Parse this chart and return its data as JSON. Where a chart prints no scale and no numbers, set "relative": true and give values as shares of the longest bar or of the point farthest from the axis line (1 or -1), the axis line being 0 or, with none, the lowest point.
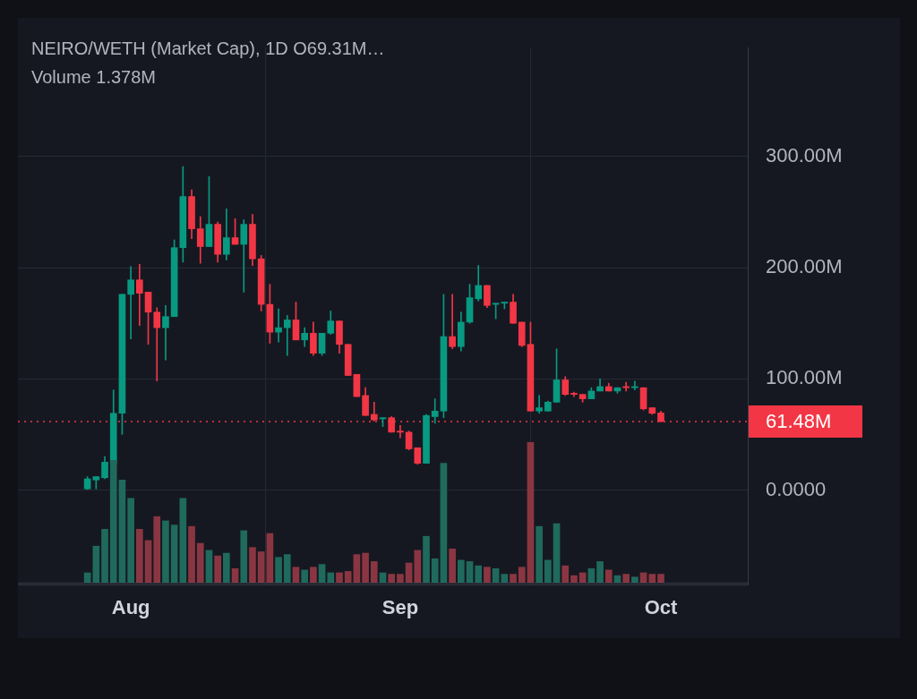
{
  "chart_data": [
    {
      "type": "candlestick",
      "title": "NEIRO/WETH (Market Cap), 1D O69.31M…",
      "x": [
        "--07-27",
        "--07-28",
        "--07-29",
        "--07-30",
        "--07-31",
        "--08-01",
        "--08-02",
        "--08-03",
        "--08-04",
        "--08-05",
        "--08-06",
        "--08-07",
        "--08-08",
        "--08-09",
        "--08-10",
        "--08-11",
        "--08-12",
        "--08-13",
        "--08-14",
        "--08-15",
        "--08-16",
        "--08-17",
        "--08-18",
        "--08-19",
        "--08-20",
        "--08-21",
        "--08-22",
        "--08-23",
        "--08-24",
        "--08-25",
        "--08-26",
        "--08-27",
        "--08-28",
        "--08-29",
        "--08-30",
        "--08-31",
        "--09-01",
        "--09-02",
        "--09-03",
        "--09-04",
        "--09-05",
        "--09-06",
        "--09-07",
        "--09-08",
        "--09-09",
        "--09-10",
        "--09-11",
        "--09-12",
        "--09-13",
        "--09-14",
        "--09-15",
        "--09-16",
        "--09-17",
        "--09-18",
        "--09-19",
        "--09-20",
        "--09-21",
        "--09-22",
        "--09-23",
        "--09-24",
        "--09-25",
        "--09-26",
        "--09-27",
        "--09-28",
        "--09-29",
        "--09-30",
        "--10-01"
      ],
      "ohlc": [
        [
          1,
          12,
          0.5,
          10
        ],
        [
          9,
          12,
          1,
          12
        ],
        [
          11,
          30,
          10,
          25
        ],
        [
          24,
          90,
          24,
          69
        ],
        [
          69,
          176,
          50,
          176
        ],
        [
          176,
          201,
          136,
          189
        ],
        [
          189,
          203,
          148,
          177
        ],
        [
          178,
          178,
          131,
          160
        ],
        [
          160,
          164,
          98,
          146
        ],
        [
          146,
          166,
          117,
          156
        ],
        [
          156,
          225,
          156,
          218
        ],
        [
          218,
          291,
          205,
          264
        ],
        [
          264,
          270,
          226,
          235
        ],
        [
          235,
          246,
          204,
          219
        ],
        [
          219,
          282,
          219,
          239
        ],
        [
          239,
          241,
          205,
          212
        ],
        [
          212,
          253,
          207,
          227
        ],
        [
          227,
          244,
          221,
          221
        ],
        [
          221,
          243,
          178,
          239
        ],
        [
          239,
          248,
          202,
          208
        ],
        [
          208,
          211,
          161,
          167
        ],
        [
          167,
          185,
          132,
          142
        ],
        [
          142,
          163,
          133,
          146
        ],
        [
          146,
          157,
          121,
          153
        ],
        [
          153,
          169,
          135,
          135
        ],
        [
          135,
          146,
          129,
          141
        ],
        [
          141,
          151,
          121,
          123
        ],
        [
          123,
          141,
          121,
          141
        ],
        [
          141,
          161,
          140,
          152
        ],
        [
          152,
          152,
          123,
          131
        ],
        [
          131,
          131,
          103,
          103
        ],
        [
          104,
          104,
          84,
          84
        ],
        [
          85,
          92,
          67,
          67
        ],
        [
          68,
          79,
          62,
          63
        ],
        [
          64,
          65,
          57,
          65
        ],
        [
          65,
          66,
          52,
          52
        ],
        [
          53,
          58,
          47,
          52
        ],
        [
          52,
          53,
          36,
          37
        ],
        [
          38,
          38,
          23,
          24
        ],
        [
          24,
          68,
          24,
          67
        ],
        [
          66,
          82,
          60,
          71
        ],
        [
          71,
          176,
          65,
          138
        ],
        [
          138,
          176,
          127,
          129
        ],
        [
          129,
          160,
          125,
          151
        ],
        [
          151,
          185,
          150,
          173
        ],
        [
          172,
          202,
          170,
          184
        ],
        [
          184,
          184,
          164,
          166
        ],
        [
          167,
          168,
          154,
          168
        ],
        [
          168,
          169,
          163,
          169
        ],
        [
          169,
          176,
          150,
          150
        ],
        [
          151,
          151,
          129,
          130
        ],
        [
          131,
          151,
          71,
          71
        ],
        [
          71,
          85,
          69,
          74
        ],
        [
          71,
          80,
          71,
          79
        ],
        [
          79,
          127,
          79,
          99
        ],
        [
          99,
          102,
          85,
          86
        ],
        [
          87,
          88,
          84,
          86
        ],
        [
          86,
          86,
          79,
          82
        ],
        [
          82,
          92,
          82,
          89
        ],
        [
          89,
          100,
          89,
          93
        ],
        [
          93,
          96,
          89,
          89
        ],
        [
          89,
          92,
          87,
          92
        ],
        [
          93,
          97,
          89,
          92
        ],
        [
          92,
          98,
          90,
          93
        ],
        [
          92,
          92,
          72,
          73
        ],
        [
          74,
          74,
          68,
          69
        ],
        [
          69.31,
          71,
          61.48,
          61.48
        ]
      ],
      "colors": [
        "#089981",
        "#089981",
        "#089981",
        "#089981",
        "#089981",
        "#089981",
        "#f23645",
        "#f23645",
        "#f23645",
        "#089981",
        "#089981",
        "#089981",
        "#f23645",
        "#f23645",
        "#089981",
        "#f23645",
        "#089981",
        "#f23645",
        "#089981",
        "#f23645",
        "#f23645",
        "#f23645",
        "#089981",
        "#089981",
        "#f23645",
        "#089981",
        "#f23645",
        "#089981",
        "#089981",
        "#f23645",
        "#f23645",
        "#f23645",
        "#f23645",
        "#f23645",
        "#089981",
        "#f23645",
        "#f23645",
        "#f23645",
        "#f23645",
        "#089981",
        "#089981",
        "#089981",
        "#f23645",
        "#089981",
        "#089981",
        "#089981",
        "#f23645",
        "#089981",
        "#089981",
        "#f23645",
        "#f23645",
        "#f23645",
        "#089981",
        "#089981",
        "#089981",
        "#f23645",
        "#f23645",
        "#f23645",
        "#089981",
        "#089981",
        "#f23645",
        "#089981",
        "#f23645",
        "#089981",
        "#f23645",
        "#f23645",
        "#f23645"
      ],
      "xlim": [
        "--07-19",
        "--10-11"
      ],
      "xticks": [
        {
          "value": "--08-01",
          "label": "Aug"
        },
        {
          "value": "--09-01",
          "label": "Sep"
        },
        {
          "value": "--10-01",
          "label": "Oct"
        }
      ],
      "ylim": [
        -85,
        398
      ],
      "yticks": [
        {
          "value": 0,
          "label": "0.0000"
        },
        {
          "value": 100,
          "label": "100.00M"
        },
        {
          "value": 200,
          "label": "200.00M"
        },
        {
          "value": 300,
          "label": "300.00M"
        }
      ],
      "ref_lines": [
        {
          "axis": "y",
          "value": 61.48,
          "label": "61.48M",
          "color": "#f23645",
          "line_style": "dotted"
        }
      ],
      "grid": true
    },
    {
      "type": "bar",
      "title": "Volume 1.378M",
      "relative": true,
      "tick_labels": false,
      "x": [
        "--07-27",
        "--07-28",
        "--07-29",
        "--07-30",
        "--07-31",
        "--08-01",
        "--08-02",
        "--08-03",
        "--08-04",
        "--08-05",
        "--08-06",
        "--08-07",
        "--08-08",
        "--08-09",
        "--08-10",
        "--08-11",
        "--08-12",
        "--08-13",
        "--08-14",
        "--08-15",
        "--08-16",
        "--08-17",
        "--08-18",
        "--08-19",
        "--08-20",
        "--08-21",
        "--08-22",
        "--08-23",
        "--08-24",
        "--08-25",
        "--08-26",
        "--08-27",
        "--08-28",
        "--08-29",
        "--08-30",
        "--08-31",
        "--09-01",
        "--09-02",
        "--09-03",
        "--09-04",
        "--09-05",
        "--09-06",
        "--09-07",
        "--09-08",
        "--09-09",
        "--09-10",
        "--09-11",
        "--09-12",
        "--09-13",
        "--09-14",
        "--09-15",
        "--09-16",
        "--09-17",
        "--09-18",
        "--09-19",
        "--09-20",
        "--09-21",
        "--09-22",
        "--09-23",
        "--09-24",
        "--09-25",
        "--09-26",
        "--09-27",
        "--09-28",
        "--09-29",
        "--09-30",
        "--10-01"
      ],
      "values": [
        0.07,
        0.26,
        0.38,
        0.87,
        0.73,
        0.6,
        0.38,
        0.3,
        0.47,
        0.44,
        0.41,
        0.6,
        0.4,
        0.28,
        0.23,
        0.19,
        0.21,
        0.1,
        0.37,
        0.25,
        0.22,
        0.35,
        0.18,
        0.2,
        0.11,
        0.09,
        0.11,
        0.13,
        0.07,
        0.07,
        0.08,
        0.2,
        0.21,
        0.15,
        0.07,
        0.06,
        0.06,
        0.14,
        0.23,
        0.33,
        0.17,
        0.85,
        0.24,
        0.16,
        0.15,
        0.12,
        0.11,
        0.1,
        0.06,
        0.06,
        0.11,
        1,
        0.4,
        0.16,
        0.42,
        0.12,
        0.05,
        0.07,
        0.1,
        0.15,
        0.09,
        0.05,
        0.06,
        0.04,
        0.07,
        0.06,
        0.06
      ],
      "colors": [
        "#1f6a5d",
        "#1f6a5d",
        "#1f6a5d",
        "#1f6a5d",
        "#1f6a5d",
        "#1f6a5d",
        "#8a3642",
        "#8a3642",
        "#8a3642",
        "#1f6a5d",
        "#1f6a5d",
        "#1f6a5d",
        "#8a3642",
        "#8a3642",
        "#1f6a5d",
        "#8a3642",
        "#1f6a5d",
        "#8a3642",
        "#1f6a5d",
        "#8a3642",
        "#8a3642",
        "#8a3642",
        "#1f6a5d",
        "#1f6a5d",
        "#8a3642",
        "#1f6a5d",
        "#8a3642",
        "#1f6a5d",
        "#1f6a5d",
        "#8a3642",
        "#8a3642",
        "#8a3642",
        "#8a3642",
        "#8a3642",
        "#1f6a5d",
        "#8a3642",
        "#8a3642",
        "#8a3642",
        "#8a3642",
        "#1f6a5d",
        "#1f6a5d",
        "#1f6a5d",
        "#8a3642",
        "#1f6a5d",
        "#1f6a5d",
        "#1f6a5d",
        "#8a3642",
        "#1f6a5d",
        "#1f6a5d",
        "#8a3642",
        "#8a3642",
        "#8a3642",
        "#1f6a5d",
        "#1f6a5d",
        "#1f6a5d",
        "#8a3642",
        "#8a3642",
        "#8a3642",
        "#1f6a5d",
        "#1f6a5d",
        "#8a3642",
        "#1f6a5d",
        "#8a3642",
        "#1f6a5d",
        "#8a3642",
        "#8a3642",
        "#8a3642"
      ],
      "xlim": [
        "--07-19",
        "--10-11"
      ]
    }
  ]
}
